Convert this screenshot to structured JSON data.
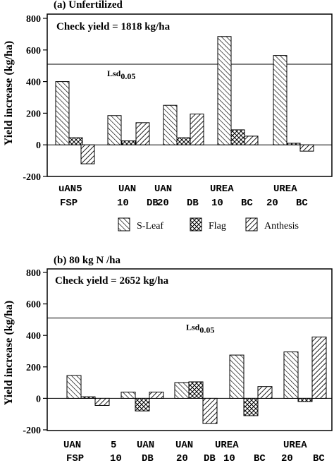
{
  "chart_data": [
    {
      "type": "bar",
      "title": "(a) Unfertilized",
      "annotation": "Check yield = 1818 kg/ha",
      "ylabel": "Yield increase (kg/ha)",
      "xlabel": "",
      "ylim": [
        -200,
        800
      ],
      "yticks": [
        "-200",
        "0",
        "200",
        "400",
        "600",
        "800"
      ],
      "reference_line": {
        "value": 510,
        "label_main": "Lsd",
        "label_sub": "0.05"
      },
      "category_labels_top": [
        "uAN5",
        "UAN",
        "UAN",
        "UREA",
        "UREA"
      ],
      "category_labels_bottom": [
        "FSP",
        "10   DB",
        "20   DB",
        "10   BC",
        "20   BC"
      ],
      "categories": [
        "uAN5 FSP",
        "UAN 10 DB",
        "UAN 20 DB",
        "UREA 10 BC",
        "UREA 20 BC"
      ],
      "series": [
        {
          "name": "S-Leaf",
          "values": [
            400,
            185,
            250,
            685,
            565
          ]
        },
        {
          "name": "Flag",
          "values": [
            45,
            25,
            45,
            95,
            10
          ]
        },
        {
          "name": "Anthesis",
          "values": [
            -120,
            140,
            195,
            55,
            -40
          ]
        }
      ],
      "legend": [
        "S-Leaf",
        "Flag",
        "Anthesis"
      ],
      "legend_position": "below"
    },
    {
      "type": "bar",
      "title": "(b) 80 kg N /ha",
      "annotation": "Check yield = 2652 kg/ha",
      "ylabel": "Yield increase (kg/ha)",
      "xlabel": "",
      "ylim": [
        -200,
        800
      ],
      "yticks": [
        "-200",
        "0",
        "200",
        "400",
        "600",
        "800"
      ],
      "reference_line": {
        "value": 510,
        "label_main": "Lsd",
        "label_sub": "0.05"
      },
      "category_labels_top": [
        "UAN",
        "5",
        "UAN",
        "UAN",
        "UREA",
        "UREA"
      ],
      "category_labels_bottom": [
        "FSP",
        "10",
        "DB",
        "20",
        "DB",
        "10",
        "BC",
        "20",
        "BC"
      ],
      "categories": [
        "UAN 5 FSP",
        "UAN 10 DB",
        "UAN 20 DB",
        "UREA 10 BC",
        "UREA 20 BC"
      ],
      "series": [
        {
          "name": "S-Leaf",
          "values": [
            145,
            40,
            100,
            275,
            295
          ]
        },
        {
          "name": "Flag",
          "values": [
            10,
            -80,
            105,
            -110,
            -20
          ]
        },
        {
          "name": "Anthesis",
          "values": [
            -45,
            40,
            -160,
            75,
            390
          ]
        }
      ]
    }
  ],
  "colors": {
    "line": "#000000",
    "hatch": "#000000",
    "background": "#ffffff"
  }
}
